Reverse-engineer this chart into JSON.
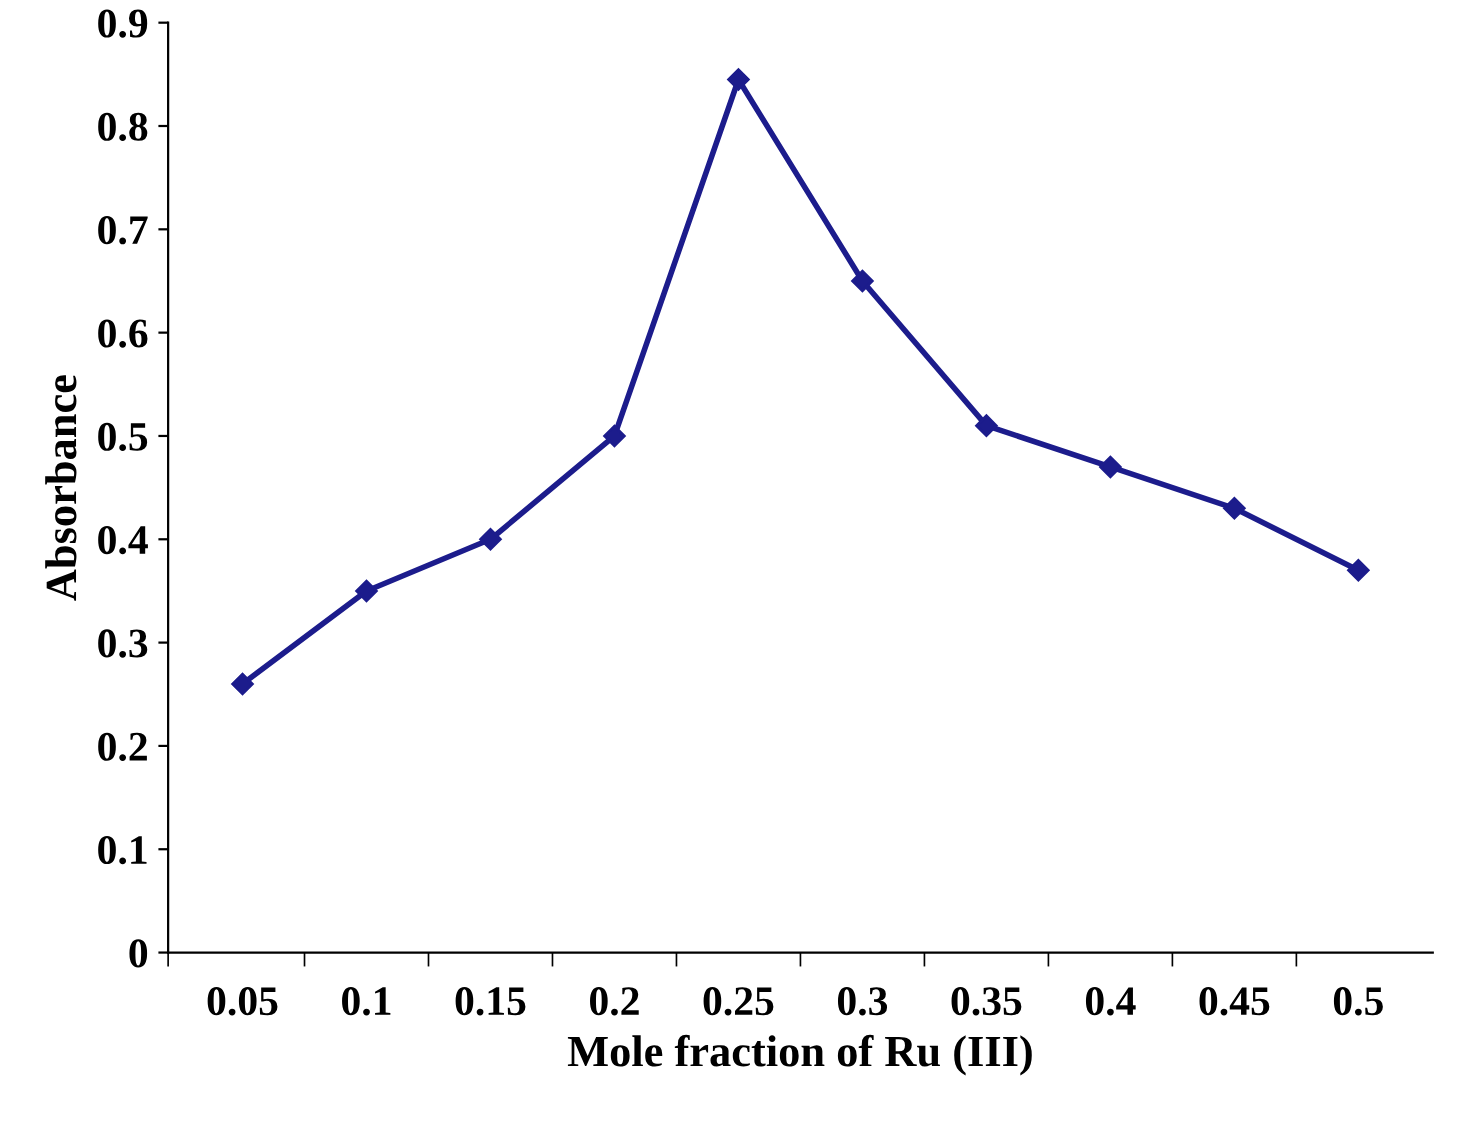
{
  "chart_data": {
    "type": "line",
    "xlabel": "Mole fraction of Ru (III)",
    "ylabel": "Absorbance",
    "categories": [
      "0.05",
      "0.1",
      "0.15",
      "0.2",
      "0.25",
      "0.3",
      "0.35",
      "0.4",
      "0.45",
      "0.5"
    ],
    "series": [
      {
        "color": "#1c1c8c",
        "values": [
          0.26,
          0.35,
          0.4,
          0.5,
          0.845,
          0.65,
          0.51,
          0.47,
          0.43,
          0.37
        ]
      }
    ],
    "ylim": [
      0,
      0.9
    ],
    "yticks": [
      0,
      0.1,
      0.2,
      0.3,
      0.4,
      0.5,
      0.6,
      0.7,
      0.8,
      0.9
    ],
    "marker": "diamond",
    "line_style": "solid",
    "grid": false,
    "legend": false
  }
}
